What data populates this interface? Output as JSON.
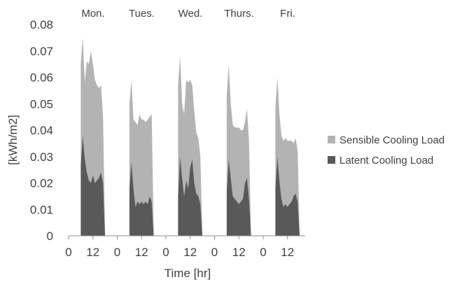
{
  "chart_data": {
    "type": "area",
    "stacked": true,
    "ylabel": "[kWh/m2]",
    "xlabel": "Time [hr]",
    "ylim": [
      0,
      0.08
    ],
    "yticks": [
      {
        "value": 0,
        "label": "0"
      },
      {
        "value": 0.01,
        "label": "0.01"
      },
      {
        "value": 0.02,
        "label": "0.02"
      },
      {
        "value": 0.03,
        "label": "0.03"
      },
      {
        "value": 0.04,
        "label": "0.04"
      },
      {
        "value": 0.05,
        "label": "0.05"
      },
      {
        "value": 0.06,
        "label": "0.06"
      },
      {
        "value": 0.07,
        "label": "0.07"
      },
      {
        "value": 0.08,
        "label": "0.08"
      }
    ],
    "days": [
      "Mon.",
      "Tues.",
      "Wed.",
      "Thurs.",
      "Fri."
    ],
    "day_ticks": [
      "0",
      "12"
    ],
    "grid": false,
    "legend_position": "right",
    "legend": [
      {
        "name": "Sensible Cooling Load",
        "color": "#b3b3b3"
      },
      {
        "name": "Latent Cooling Load",
        "color": "#595959"
      }
    ],
    "hours": [
      6,
      7,
      8,
      9,
      10,
      11,
      12,
      13,
      14,
      15,
      16,
      17,
      18
    ],
    "series": [
      {
        "name": "Latent Cooling Load",
        "color": "#595959",
        "values": [
          [
            0.027,
            0.038,
            0.029,
            0.024,
            0.021,
            0.02,
            0.023,
            0.02,
            0.021,
            0.022,
            0.024,
            0.02,
            0.0
          ],
          [
            0.018,
            0.028,
            0.018,
            0.011,
            0.013,
            0.012,
            0.013,
            0.012,
            0.013,
            0.012,
            0.015,
            0.013,
            0.0
          ],
          [
            0.015,
            0.03,
            0.022,
            0.015,
            0.021,
            0.018,
            0.026,
            0.029,
            0.02,
            0.016,
            0.015,
            0.012,
            0.0
          ],
          [
            0.017,
            0.029,
            0.022,
            0.015,
            0.014,
            0.013,
            0.012,
            0.013,
            0.014,
            0.02,
            0.022,
            0.014,
            0.0
          ],
          [
            0.018,
            0.03,
            0.021,
            0.014,
            0.011,
            0.012,
            0.011,
            0.012,
            0.013,
            0.015,
            0.016,
            0.013,
            0.0
          ]
        ]
      },
      {
        "name": "Sensible Cooling Load",
        "color": "#b3b3b3",
        "values": [
          [
            0.038,
            0.037,
            0.029,
            0.042,
            0.044,
            0.05,
            0.042,
            0.039,
            0.036,
            0.034,
            0.033,
            0.025,
            0.0
          ],
          [
            0.032,
            0.031,
            0.026,
            0.032,
            0.029,
            0.034,
            0.031,
            0.032,
            0.03,
            0.032,
            0.03,
            0.033,
            0.0
          ],
          [
            0.042,
            0.038,
            0.028,
            0.031,
            0.038,
            0.04,
            0.033,
            0.028,
            0.027,
            0.023,
            0.022,
            0.018,
            0.0
          ],
          [
            0.036,
            0.036,
            0.028,
            0.027,
            0.027,
            0.028,
            0.029,
            0.027,
            0.026,
            0.023,
            0.026,
            0.022,
            0.0
          ],
          [
            0.03,
            0.03,
            0.025,
            0.024,
            0.025,
            0.025,
            0.025,
            0.024,
            0.023,
            0.02,
            0.021,
            0.019,
            0.0
          ]
        ]
      }
    ]
  }
}
